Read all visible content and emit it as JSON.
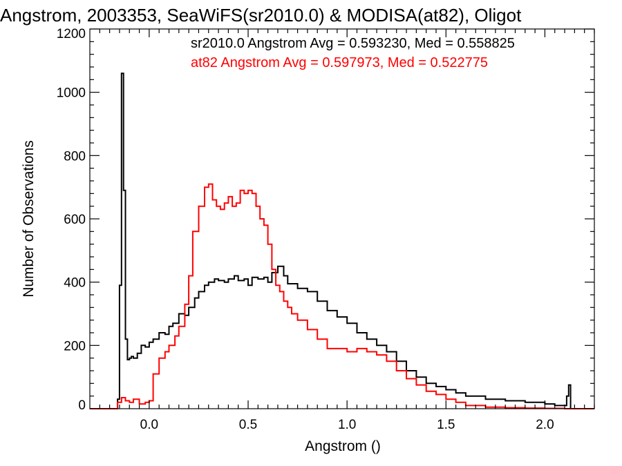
{
  "chart_data": {
    "type": "line",
    "step": true,
    "title": "Angstrom, 2003353, SeaWiFS(sr2010.0) & MODISA(at82), Oligot",
    "xlabel": "Angstrom ()",
    "ylabel": "Number of Observations",
    "xlim": [
      -0.3,
      2.25
    ],
    "ylim": [
      0,
      1200
    ],
    "xticks": [
      0.0,
      0.5,
      1.0,
      1.5,
      2.0
    ],
    "xtick_labels": [
      "0.0",
      "0.5",
      "1.0",
      "1.5",
      "2.0"
    ],
    "yticks": [
      0,
      200,
      400,
      600,
      800,
      1000,
      1200
    ],
    "ytick_labels": [
      "0",
      "200",
      "400",
      "600",
      "800",
      "1000",
      "1200"
    ],
    "grid": false,
    "annotations": [
      {
        "text": "sr2010.0 Angstrom Avg = 0.593230, Med = 0.558825",
        "color": "#000000"
      },
      {
        "text": "at82 Angstrom Avg = 0.597973, Med = 0.522775",
        "color": "#ff0000"
      }
    ],
    "series": [
      {
        "color": "#000000",
        "x": [
          -0.3,
          -0.16,
          -0.15,
          -0.14,
          -0.13,
          -0.12,
          -0.11,
          -0.1,
          -0.09,
          -0.08,
          -0.06,
          -0.04,
          -0.02,
          0.0,
          0.02,
          0.05,
          0.08,
          0.1,
          0.12,
          0.15,
          0.18,
          0.2,
          0.23,
          0.25,
          0.28,
          0.3,
          0.33,
          0.35,
          0.38,
          0.4,
          0.43,
          0.45,
          0.48,
          0.5,
          0.52,
          0.55,
          0.58,
          0.6,
          0.62,
          0.65,
          0.68,
          0.7,
          0.75,
          0.8,
          0.85,
          0.9,
          0.95,
          1.0,
          1.05,
          1.1,
          1.15,
          1.2,
          1.25,
          1.3,
          1.35,
          1.4,
          1.45,
          1.5,
          1.55,
          1.6,
          1.7,
          1.8,
          1.9,
          2.0,
          2.05,
          2.1,
          2.11,
          2.12,
          2.13,
          2.25
        ],
        "y": [
          0,
          30,
          390,
          1060,
          690,
          220,
          155,
          160,
          165,
          160,
          175,
          200,
          195,
          210,
          220,
          240,
          235,
          260,
          270,
          300,
          295,
          320,
          350,
          370,
          390,
          400,
          410,
          405,
          400,
          410,
          420,
          405,
          410,
          390,
          415,
          410,
          415,
          400,
          430,
          450,
          420,
          395,
          380,
          370,
          340,
          310,
          290,
          270,
          240,
          220,
          200,
          180,
          150,
          120,
          100,
          80,
          70,
          60,
          50,
          40,
          30,
          25,
          20,
          15,
          10,
          10,
          40,
          75,
          0,
          0
        ]
      },
      {
        "color": "#ff0000",
        "x": [
          -0.3,
          -0.16,
          -0.14,
          -0.12,
          -0.1,
          -0.08,
          -0.05,
          -0.02,
          0.0,
          0.02,
          0.05,
          0.08,
          0.1,
          0.13,
          0.15,
          0.18,
          0.2,
          0.22,
          0.25,
          0.28,
          0.3,
          0.32,
          0.34,
          0.36,
          0.38,
          0.4,
          0.42,
          0.44,
          0.46,
          0.48,
          0.5,
          0.52,
          0.54,
          0.56,
          0.58,
          0.6,
          0.62,
          0.64,
          0.66,
          0.68,
          0.7,
          0.72,
          0.75,
          0.8,
          0.85,
          0.9,
          0.95,
          1.0,
          1.05,
          1.1,
          1.15,
          1.2,
          1.25,
          1.3,
          1.35,
          1.4,
          1.45,
          1.5,
          1.55,
          1.6,
          1.7,
          1.8,
          1.9,
          2.0,
          2.1,
          2.25
        ],
        "y": [
          0,
          20,
          35,
          25,
          20,
          30,
          15,
          20,
          25,
          110,
          160,
          180,
          200,
          230,
          260,
          330,
          420,
          560,
          640,
          700,
          710,
          660,
          640,
          630,
          650,
          670,
          640,
          650,
          690,
          680,
          690,
          680,
          640,
          600,
          580,
          520,
          440,
          390,
          370,
          340,
          320,
          300,
          280,
          250,
          220,
          190,
          190,
          180,
          190,
          180,
          170,
          150,
          120,
          95,
          75,
          55,
          45,
          30,
          20,
          10,
          5,
          3,
          2,
          1,
          0,
          0
        ]
      }
    ]
  }
}
